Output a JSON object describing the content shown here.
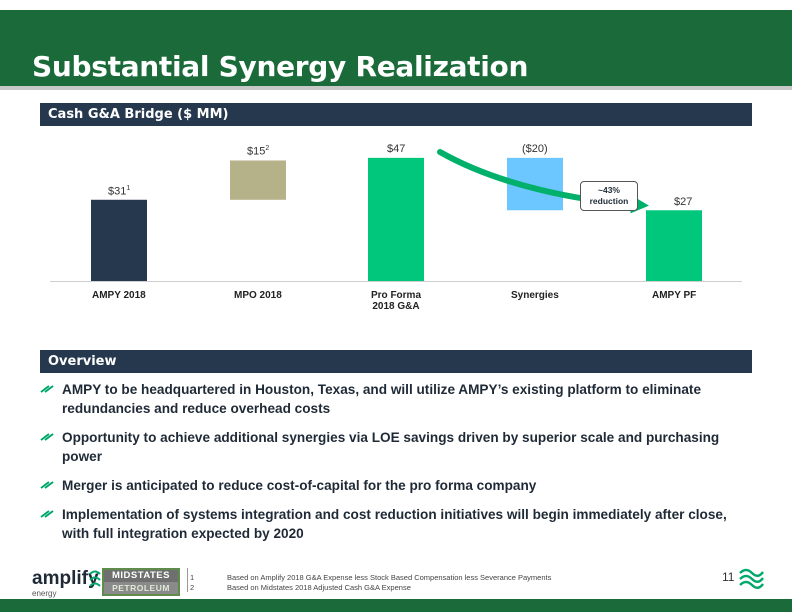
{
  "title": "Substantial Synergy Realization",
  "chart_header": "Cash G&A Bridge ($ MM)",
  "overview_header": "Overview",
  "chart_data": {
    "type": "bar",
    "subtype": "waterfall",
    "categories": [
      "AMPY 2018",
      "MPO 2018",
      "Pro Forma\n2018 G&A",
      "Synergies",
      "AMPY PF"
    ],
    "values": [
      31,
      15,
      47,
      -20,
      27
    ],
    "value_labels": [
      "$31",
      "$15",
      "$47",
      "($20)",
      "$27"
    ],
    "value_label_footnotes": [
      "1",
      "2",
      "",
      "",
      ""
    ],
    "colors": [
      "#25384d",
      "#b5b189",
      "#00c77c",
      "#6cc6ff",
      "#00c77c"
    ],
    "ylim": [
      0,
      50
    ],
    "callout": [
      "~43%",
      "reduction"
    ],
    "grid": false
  },
  "bullets": [
    "AMPY to be headquartered in Houston, Texas, and will utilize AMPY’s existing platform to eliminate redundancies and reduce overhead costs",
    "Opportunity to achieve additional synergies via LOE savings driven by superior scale and purchasing power",
    "Merger is anticipated to reduce cost-of-capital for the pro forma company",
    "Implementation of systems integration and cost reduction initiatives will begin immediately after close, with full integration expected by 2020"
  ],
  "footer": {
    "amplify_name": "amplify",
    "amplify_sub": "energy",
    "midstates_top": "MIDSTATES",
    "midstates_bottom": "PETROLEUM",
    "footnotes": [
      {
        "num": "1",
        "text": "Based on Amplify 2018 G&A Expense less Stock Based Compensation less Severance Payments"
      },
      {
        "num": "2",
        "text": "Based on Midstates 2018 Adjusted Cash G&A Expense"
      }
    ],
    "page_number": "11"
  },
  "icons": {
    "bullet": "double-arrow-icon",
    "brand": "green-wave-mark-icon"
  },
  "colors": {
    "title_green": "#1b6b3a",
    "header_navy": "#25384d",
    "accent_green": "#00c77c"
  }
}
